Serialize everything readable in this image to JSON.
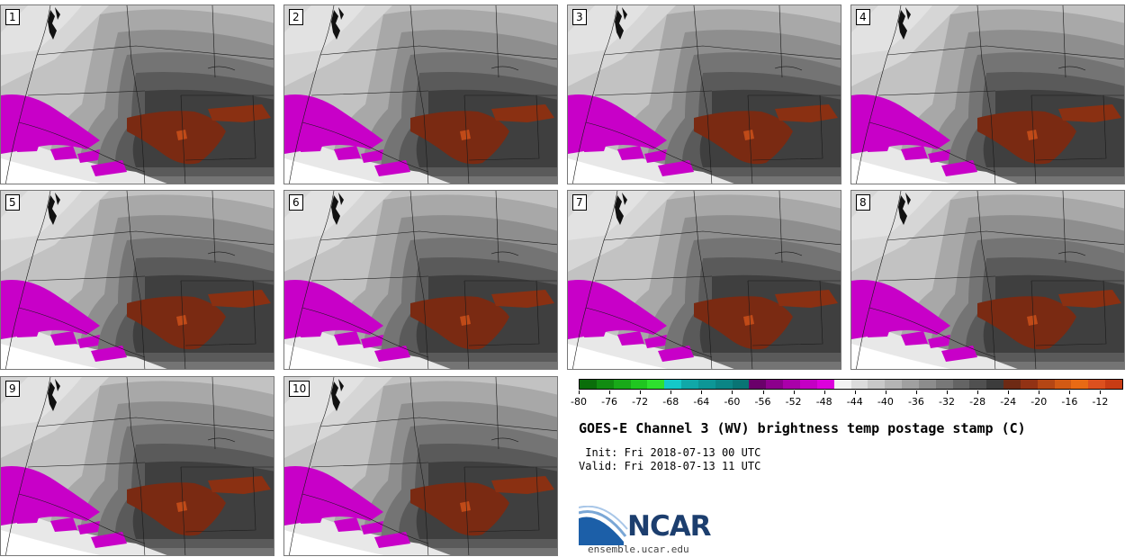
{
  "panels": [
    {
      "label": "1"
    },
    {
      "label": "2"
    },
    {
      "label": "3"
    },
    {
      "label": "4"
    },
    {
      "label": "5"
    },
    {
      "label": "6"
    },
    {
      "label": "7"
    },
    {
      "label": "8"
    },
    {
      "label": "9"
    },
    {
      "label": "10"
    }
  ],
  "colorbar": {
    "colors": [
      "#0a6e0a",
      "#118c11",
      "#19a919",
      "#20c620",
      "#2ee02e",
      "#14c8c8",
      "#10a8a8",
      "#0d9696",
      "#0b8585",
      "#097474",
      "#6a006a",
      "#8c008c",
      "#aa00aa",
      "#c400c4",
      "#dc00dc",
      "#f2f2f2",
      "#dcdcdc",
      "#c8c8c8",
      "#b4b4b4",
      "#a0a0a0",
      "#8c8c8c",
      "#787878",
      "#646464",
      "#505050",
      "#3c3c3c",
      "#6e2a14",
      "#923214",
      "#b44614",
      "#d25a14",
      "#e86a14",
      "#dc501e",
      "#c83c14"
    ],
    "tick_labels": [
      "-80",
      "-76",
      "-72",
      "-68",
      "-64",
      "-60",
      "-56",
      "-52",
      "-48",
      "-44",
      "-40",
      "-36",
      "-32",
      "-28",
      "-24",
      "-20",
      "-16",
      "-12"
    ]
  },
  "title": "GOES-E Channel 3 (WV) brightness temp postage stamp (C)",
  "init": " Init: Fri 2018-07-13 00 UTC",
  "valid": "Valid: Fri 2018-07-13 11 UTC",
  "logo": {
    "text": "NCAR",
    "url": "ensemble.ucar.edu"
  }
}
